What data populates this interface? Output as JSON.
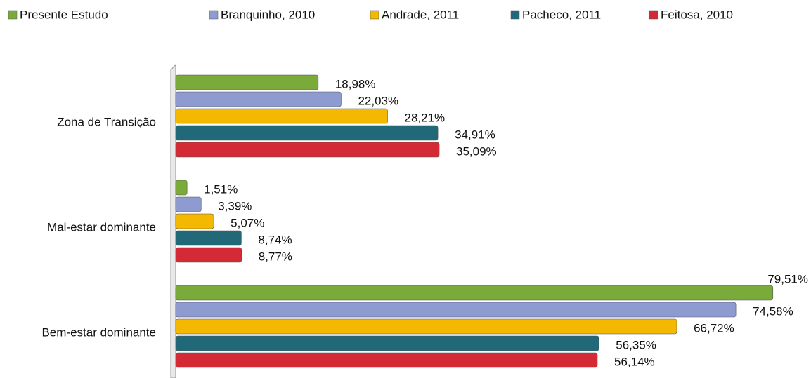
{
  "chart_data": {
    "type": "bar",
    "orientation": "horizontal",
    "categories": [
      "Zona de Transição",
      "Mal-estar dominante",
      "Bem-estar dominante"
    ],
    "xlim": [
      0,
      80
    ],
    "legend": "top",
    "series": [
      {
        "name": "Presente Estudo",
        "color": "#7aab3a",
        "values": [
          18.98,
          1.51,
          79.51
        ],
        "value_labels": [
          "18,98%",
          "1,51%",
          "79,51%"
        ]
      },
      {
        "name": "Branquinho, 2010",
        "color": "#8e9bd0",
        "values": [
          22.03,
          3.39,
          74.58
        ],
        "value_labels": [
          "22,03%",
          "3,39%",
          "74,58%"
        ]
      },
      {
        "name": "Andrade, 2011",
        "color": "#f5b800",
        "values": [
          28.21,
          5.07,
          66.72
        ],
        "value_labels": [
          "28,21%",
          "5,07%",
          "66,72%"
        ]
      },
      {
        "name": "Pacheco, 2011",
        "color": "#216878",
        "values": [
          34.91,
          8.74,
          56.35
        ],
        "value_labels": [
          "34,91%",
          "8,74%",
          "56,35%"
        ]
      },
      {
        "name": "Feitosa, 2010",
        "color": "#d42a35",
        "values": [
          35.09,
          8.77,
          56.14
        ],
        "value_labels": [
          "35,09%",
          "8,77%",
          "56,14%"
        ]
      }
    ]
  }
}
